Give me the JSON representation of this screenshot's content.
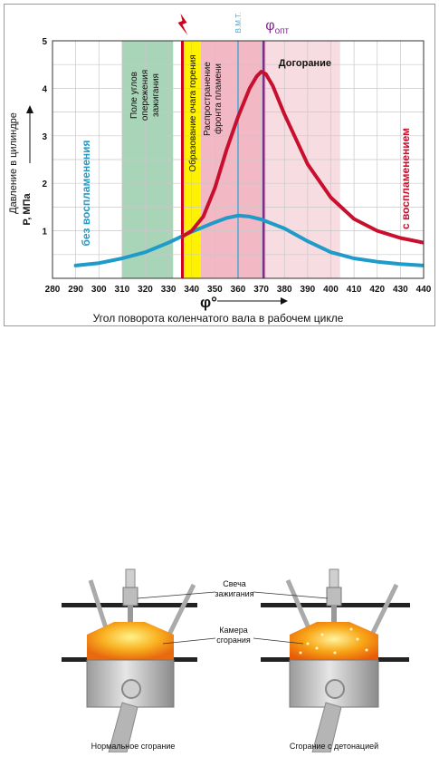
{
  "chart_data": {
    "type": "line",
    "ylabel_line1": "Давление в цилиндре",
    "ylabel_line2": "P, МПа",
    "xlabel_symbol": "φ°",
    "xlabel": "Угол поворота коленчатого вала в рабочем цикле",
    "xlim": [
      280,
      440
    ],
    "ylim": [
      0,
      5
    ],
    "x_ticks": [
      280,
      290,
      300,
      310,
      320,
      330,
      340,
      350,
      360,
      370,
      380,
      390,
      400,
      410,
      420,
      430,
      440
    ],
    "y_ticks": [
      1,
      2,
      3,
      4,
      5
    ],
    "grid": true,
    "series": [
      {
        "name": "без воспламенения",
        "color": "#1e9bc8",
        "x": [
          290,
          300,
          310,
          320,
          330,
          340,
          350,
          355,
          360,
          365,
          370,
          380,
          390,
          400,
          410,
          420,
          430,
          440
        ],
        "y": [
          0.27,
          0.32,
          0.42,
          0.55,
          0.75,
          0.98,
          1.18,
          1.27,
          1.32,
          1.3,
          1.24,
          1.05,
          0.78,
          0.55,
          0.42,
          0.35,
          0.3,
          0.27
        ]
      },
      {
        "name": "с воспламенением",
        "color": "#c8102e",
        "x": [
          336,
          340,
          345,
          350,
          355,
          360,
          365,
          368,
          370,
          372,
          375,
          380,
          390,
          400,
          410,
          420,
          430,
          440
        ],
        "y": [
          0.88,
          1.0,
          1.3,
          1.9,
          2.7,
          3.4,
          4.0,
          4.25,
          4.35,
          4.3,
          4.05,
          3.45,
          2.4,
          1.7,
          1.25,
          1.0,
          0.85,
          0.75
        ]
      }
    ],
    "bands": [
      {
        "label": "Поле углов опережения зажигания",
        "lines": [
          "Поле углов",
          "опережения",
          "зажигания"
        ],
        "x0": 310,
        "x1": 332,
        "color": "#a8d4b8",
        "vertical": true
      },
      {
        "label": "Образование очага горения",
        "x0": 336,
        "x1": 344,
        "color": "#fff200",
        "vertical": true
      },
      {
        "label": "Распространение фронта пламени",
        "lines": [
          "Распространение",
          "фронта пламени"
        ],
        "x0": 344,
        "x1": 372,
        "color": "#f2b8c4",
        "vertical": true
      },
      {
        "label": "Догорание",
        "x0": 372,
        "x1": 404,
        "color": "#f7dde2",
        "vertical": false
      }
    ],
    "markers": [
      {
        "label": "В.М.Т.",
        "x": 360,
        "color": "#4aa8d8"
      },
      {
        "label": "φопт",
        "x": 371,
        "color": "#7a2e8a"
      }
    ],
    "spark_x": 336
  },
  "illustration": {
    "callouts": {
      "spark_plug": [
        "Свеча",
        "зажигания"
      ],
      "chamber": [
        "Камера",
        "сгорания"
      ]
    },
    "captions": {
      "normal": "Нормальное сгорание",
      "detonation": "Сгорание с детонацией"
    }
  }
}
